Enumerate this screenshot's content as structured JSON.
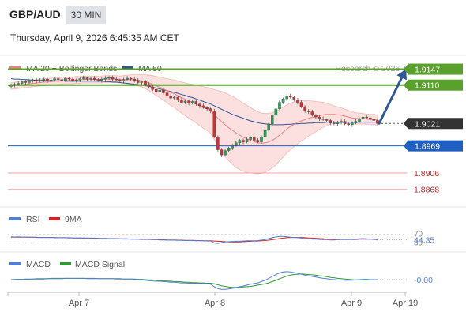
{
  "header": {
    "symbol": "GBP/AUD",
    "timeframe": "30 MIN",
    "datetime": "Thursday, April 9, 2026 6:45:35 AM CET"
  },
  "main_panel": {
    "legend": [
      {
        "label": "MA 20 + Bollinger Bands",
        "color": "#f08080"
      },
      {
        "label": "MA 50",
        "color": "#2f5597"
      }
    ],
    "attribution": "Research © 2026 Trading Central"
  },
  "rsi_panel": {
    "legend": [
      {
        "label": "RSI",
        "color": "#4f7fd9"
      },
      {
        "label": "9MA",
        "color": "#dd2222"
      }
    ],
    "levels": [
      "70",
      "30"
    ],
    "value_label": "44.35"
  },
  "macd_panel": {
    "legend": [
      {
        "label": "MACD",
        "color": "#4f7fd9"
      },
      {
        "label": "MACD Signal",
        "color": "#339933"
      }
    ],
    "value_label": "-0.00"
  },
  "colors": {
    "resistance": "#5aa02c",
    "support": "#1f5fbf",
    "current": "#333333",
    "lower_target": "#e06060",
    "bull_candle": "#2e9e5a",
    "bear_candle": "#cc3333",
    "arrow": "#2f5597",
    "band_fill": "#fbd5d5"
  },
  "chart_data": {
    "type": "candlestick",
    "instrument": "GBP/AUD",
    "x_ticks": [
      "Apr 7",
      "Apr 8",
      "Apr 9",
      "Apr 19"
    ],
    "ylim": [
      1.884,
      1.917
    ],
    "closes": [
      1.911,
      1.9112,
      1.9114,
      1.9118,
      1.9116,
      1.912,
      1.9122,
      1.9119,
      1.9121,
      1.9124,
      1.912,
      1.9122,
      1.9125,
      1.9123,
      1.9121,
      1.9126,
      1.9124,
      1.912,
      1.9122,
      1.9125,
      1.9127,
      1.9124,
      1.9126,
      1.9123,
      1.9121,
      1.9124,
      1.9126,
      1.9128,
      1.9124,
      1.9122,
      1.912,
      1.9123,
      1.9126,
      1.9124,
      1.9121,
      1.9116,
      1.9118,
      1.9112,
      1.9106,
      1.91,
      1.9095,
      1.9098,
      1.9092,
      1.9085,
      1.908,
      1.9082,
      1.9076,
      1.907,
      1.9073,
      1.9068,
      1.9072,
      1.9066,
      1.9062,
      1.9058,
      1.9055,
      1.905,
      1.899,
      1.896,
      1.8948,
      1.8958,
      1.8964,
      1.897,
      1.8976,
      1.8982,
      1.8978,
      1.8984,
      1.8988,
      1.8982,
      1.8978,
      1.899,
      1.9005,
      1.902,
      1.904,
      1.9055,
      1.907,
      1.9078,
      1.9085,
      1.9082,
      1.9076,
      1.907,
      1.906,
      1.905,
      1.9048,
      1.904,
      1.9036,
      1.9032,
      1.903,
      1.9028,
      1.9022,
      1.902,
      1.9024,
      1.9026,
      1.902,
      1.9018,
      1.9022,
      1.9026,
      1.9032,
      1.9036,
      1.9034,
      1.9031,
      1.9028,
      1.9021
    ],
    "ma20": [
      1.9108,
      1.9109,
      1.911,
      1.9111,
      1.9112,
      1.9113,
      1.9114,
      1.9115,
      1.9116,
      1.9117,
      1.9117,
      1.9118,
      1.9119,
      1.9119,
      1.912,
      1.9121,
      1.9121,
      1.9121,
      1.9122,
      1.9122,
      1.9123,
      1.9123,
      1.9123,
      1.9123,
      1.9123,
      1.9123,
      1.9124,
      1.9124,
      1.9124,
      1.9124,
      1.9123,
      1.9123,
      1.9123,
      1.9123,
      1.9122,
      1.9121,
      1.912,
      1.9118,
      1.9115,
      1.9112,
      1.9108,
      1.9105,
      1.9101,
      1.9097,
      1.9093,
      1.909,
      1.9085,
      1.9081,
      1.9077,
      1.9073,
      1.907,
      1.9066,
      1.9062,
      1.9058,
      1.9055,
      1.905,
      1.9042,
      1.9033,
      1.9025,
      1.9018,
      1.9011,
      1.9005,
      1.8999,
      1.8994,
      1.8989,
      1.8985,
      1.8982,
      1.8979,
      1.8976,
      1.8975,
      1.8976,
      1.8978,
      1.8982,
      1.8987,
      1.8994,
      1.9001,
      1.9008,
      1.9014,
      1.9019,
      1.9024,
      1.9027,
      1.903,
      1.9033,
      1.9035,
      1.9037,
      1.9039,
      1.9041,
      1.9042,
      1.9042,
      1.9042,
      1.9041,
      1.904,
      1.9038,
      1.9036,
      1.9034,
      1.9033,
      1.9032,
      1.9032,
      1.9031,
      1.903,
      1.903,
      1.9029
    ],
    "ma50": [
      1.9125,
      1.9124,
      1.9124,
      1.9123,
      1.9123,
      1.9122,
      1.9122,
      1.9121,
      1.9121,
      1.9121,
      1.912,
      1.912,
      1.912,
      1.912,
      1.912,
      1.9119,
      1.9119,
      1.9119,
      1.9119,
      1.9119,
      1.9119,
      1.9119,
      1.9119,
      1.9119,
      1.9119,
      1.9119,
      1.9118,
      1.9118,
      1.9117,
      1.9117,
      1.9116,
      1.9115,
      1.9114,
      1.9113,
      1.9112,
      1.9111,
      1.911,
      1.9109,
      1.9107,
      1.9105,
      1.9103,
      1.9101,
      1.9099,
      1.9097,
      1.9095,
      1.9093,
      1.9091,
      1.9088,
      1.9086,
      1.9083,
      1.9081,
      1.9078,
      1.9075,
      1.9072,
      1.9069,
      1.9066,
      1.9062,
      1.9058,
      1.9054,
      1.905,
      1.9046,
      1.9042,
      1.9039,
      1.9036,
      1.9033,
      1.903,
      1.9027,
      1.9025,
      1.9023,
      1.9021,
      1.902,
      1.9019,
      1.9018,
      1.9018,
      1.9018,
      1.9018,
      1.9019,
      1.9019,
      1.902,
      1.902,
      1.9021,
      1.9021,
      1.9022,
      1.9022,
      1.9023,
      1.9023,
      1.9023,
      1.9024,
      1.9024,
      1.9024,
      1.9024,
      1.9024,
      1.9024,
      1.9024,
      1.9024,
      1.9024,
      1.9024,
      1.9024,
      1.9024,
      1.9024,
      1.9024,
      1.9024
    ],
    "band_width": [
      0.0008,
      0.0008,
      0.0008,
      0.0008,
      0.0008,
      0.0008,
      0.0008,
      0.0008,
      0.0008,
      0.0008,
      0.0008,
      0.0008,
      0.0008,
      0.0008,
      0.0008,
      0.0008,
      0.0008,
      0.0008,
      0.0008,
      0.0008,
      0.0008,
      0.0008,
      0.0008,
      0.0008,
      0.0008,
      0.0008,
      0.0008,
      0.0008,
      0.0008,
      0.0008,
      0.0008,
      0.0009,
      0.001,
      0.0011,
      0.0012,
      0.0013,
      0.0014,
      0.0016,
      0.0018,
      0.002,
      0.0022,
      0.0024,
      0.0026,
      0.0028,
      0.003,
      0.0032,
      0.0034,
      0.0036,
      0.0038,
      0.004,
      0.0042,
      0.0044,
      0.0046,
      0.0048,
      0.005,
      0.0052,
      0.0058,
      0.0064,
      0.007,
      0.0074,
      0.0077,
      0.0079,
      0.008,
      0.008,
      0.0079,
      0.0078,
      0.0076,
      0.0074,
      0.0072,
      0.007,
      0.0068,
      0.0066,
      0.0064,
      0.0062,
      0.006,
      0.0058,
      0.0056,
      0.0054,
      0.0052,
      0.005,
      0.0047,
      0.0044,
      0.0041,
      0.0038,
      0.0035,
      0.0032,
      0.0029,
      0.0026,
      0.0023,
      0.002,
      0.0018,
      0.0017,
      0.0016,
      0.0015,
      0.0014,
      0.0013,
      0.0013,
      0.0012,
      0.0012,
      0.0012,
      0.0012,
      0.0012
    ],
    "levels": [
      {
        "value": 1.9147,
        "label": "1.9147",
        "kind": "resistance"
      },
      {
        "value": 1.911,
        "label": "1.9110",
        "kind": "resistance"
      },
      {
        "value": 1.9021,
        "label": "1.9021",
        "kind": "current"
      },
      {
        "value": 1.8969,
        "label": "1.8969",
        "kind": "support"
      },
      {
        "value": 1.8906,
        "label": "1.8906",
        "kind": "lower_target"
      },
      {
        "value": 1.8868,
        "label": "1.8868",
        "kind": "lower_target"
      }
    ],
    "projection_target": 1.9147,
    "rsi": {
      "range": [
        0,
        100
      ],
      "rsi": [
        58,
        57,
        58,
        57,
        57,
        56,
        56,
        56,
        55,
        55,
        55,
        55,
        54,
        54,
        54,
        54,
        53,
        53,
        53,
        52,
        52,
        52,
        51,
        51,
        51,
        50,
        50,
        50,
        49,
        49,
        49,
        48,
        48,
        48,
        47,
        47,
        46,
        46,
        46,
        45,
        45,
        44,
        44,
        43,
        43,
        43,
        42,
        42,
        41,
        41,
        41,
        40,
        40,
        40,
        39,
        39,
        30,
        28,
        32,
        35,
        36,
        37,
        38,
        38,
        39,
        40,
        40,
        40,
        41,
        43,
        46,
        50,
        54,
        57,
        60,
        60,
        58,
        56,
        55,
        54,
        52,
        50,
        49,
        48,
        47,
        46,
        45,
        45,
        44,
        44,
        45,
        46,
        46,
        46,
        47,
        48,
        49,
        50,
        49,
        48,
        46,
        44
      ],
      "ma9": [
        56,
        56,
        56,
        56,
        56,
        56,
        56,
        55,
        55,
        55,
        55,
        55,
        55,
        54,
        54,
        54,
        54,
        53,
        53,
        53,
        53,
        52,
        52,
        52,
        51,
        51,
        51,
        50,
        50,
        50,
        49,
        49,
        49,
        48,
        48,
        48,
        47,
        47,
        47,
        46,
        46,
        45,
        45,
        44,
        44,
        44,
        43,
        43,
        42,
        42,
        42,
        41,
        41,
        40,
        40,
        40,
        39,
        38,
        37,
        36,
        35,
        35,
        35,
        35,
        36,
        37,
        38,
        39,
        39,
        40,
        41,
        43,
        45,
        47,
        50,
        52,
        54,
        55,
        55,
        55,
        55,
        54,
        53,
        52,
        51,
        50,
        49,
        48,
        47,
        46,
        46,
        46,
        46,
        46,
        46,
        46,
        47,
        47,
        47,
        47,
        47,
        47
      ]
    },
    "macd": {
      "macd": [
        0.0,
        0.0001,
        0.0001,
        0.0001,
        0.0002,
        0.0002,
        0.0002,
        0.0003,
        0.0003,
        0.0003,
        0.0003,
        0.0004,
        0.0004,
        0.0004,
        0.0004,
        0.0004,
        0.0004,
        0.0004,
        0.0004,
        0.0004,
        0.0004,
        0.0003,
        0.0003,
        0.0003,
        0.0003,
        0.0003,
        0.0003,
        0.0003,
        0.0003,
        0.0002,
        0.0002,
        0.0002,
        0.0002,
        0.0002,
        0.0001,
        0.0,
        -0.0001,
        -0.0002,
        -0.0003,
        -0.0004,
        -0.0005,
        -0.0005,
        -0.0006,
        -0.0007,
        -0.0008,
        -0.0008,
        -0.0009,
        -0.001,
        -0.001,
        -0.0011,
        -0.0011,
        -0.0011,
        -0.0012,
        -0.0012,
        -0.0013,
        -0.0014,
        -0.0022,
        -0.0028,
        -0.003,
        -0.003,
        -0.0029,
        -0.0027,
        -0.0025,
        -0.0022,
        -0.002,
        -0.0017,
        -0.0014,
        -0.0012,
        -0.001,
        -0.0006,
        -0.0002,
        0.0004,
        0.001,
        0.0016,
        0.0021,
        0.0024,
        0.0025,
        0.0024,
        0.0022,
        0.002,
        0.0017,
        0.0014,
        0.0012,
        0.001,
        0.0008,
        0.0006,
        0.0004,
        0.0003,
        0.0001,
        0.0,
        -0.0001,
        -0.0001,
        -0.0002,
        -0.0002,
        -0.0002,
        -0.0001,
        0.0,
        0.0001,
        0.0001,
        0.0,
        0.0,
        0.0
      ],
      "signal": [
        0.0,
        0.0,
        0.0001,
        0.0001,
        0.0001,
        0.0001,
        0.0002,
        0.0002,
        0.0002,
        0.0002,
        0.0003,
        0.0003,
        0.0003,
        0.0003,
        0.0003,
        0.0004,
        0.0004,
        0.0004,
        0.0004,
        0.0004,
        0.0004,
        0.0004,
        0.0004,
        0.0004,
        0.0003,
        0.0003,
        0.0003,
        0.0003,
        0.0003,
        0.0003,
        0.0003,
        0.0002,
        0.0002,
        0.0002,
        0.0002,
        0.0001,
        0.0001,
        0.0,
        -0.0001,
        -0.0001,
        -0.0002,
        -0.0003,
        -0.0004,
        -0.0004,
        -0.0005,
        -0.0006,
        -0.0006,
        -0.0007,
        -0.0008,
        -0.0008,
        -0.0009,
        -0.0009,
        -0.001,
        -0.001,
        -0.0011,
        -0.0011,
        -0.0013,
        -0.0016,
        -0.0019,
        -0.0021,
        -0.0023,
        -0.0024,
        -0.0024,
        -0.0024,
        -0.0023,
        -0.0022,
        -0.0021,
        -0.0019,
        -0.0017,
        -0.0015,
        -0.0013,
        -0.001,
        -0.0006,
        -0.0002,
        0.0003,
        0.0007,
        0.0011,
        0.0014,
        0.0016,
        0.0017,
        0.0018,
        0.0017,
        0.0016,
        0.0015,
        0.0014,
        0.0012,
        0.0011,
        0.0009,
        0.0007,
        0.0006,
        0.0004,
        0.0003,
        0.0002,
        0.0001,
        0.0,
        -0.0001,
        -0.0001,
        -0.0001,
        -0.0001,
        0.0,
        0.0,
        0.0
      ]
    }
  }
}
